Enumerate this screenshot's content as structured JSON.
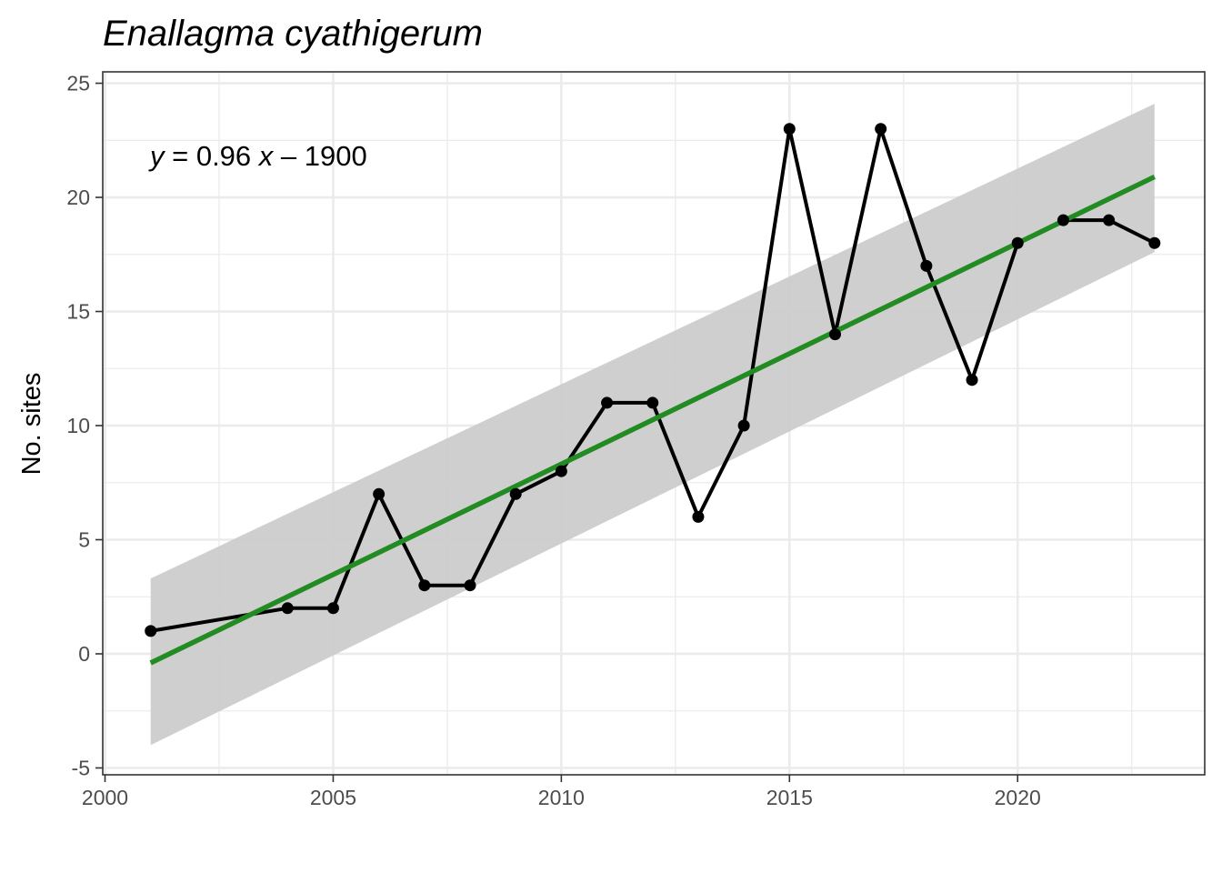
{
  "chart_data": {
    "type": "line",
    "title": "Enallagma cyathigerum",
    "xlabel": "",
    "ylabel": "No. sites",
    "xlim": [
      1999.95,
      2024.1
    ],
    "ylim": [
      -5.3,
      25.5
    ],
    "x_ticks": [
      2000,
      2005,
      2010,
      2015,
      2020
    ],
    "y_ticks": [
      -5,
      0,
      5,
      10,
      15,
      20,
      25
    ],
    "grid": true,
    "series": [
      {
        "color": "#000000",
        "x": [
          2001,
          2004,
          2005,
          2006,
          2007,
          2008,
          2009,
          2010,
          2011,
          2012,
          2013,
          2014,
          2015,
          2016,
          2017,
          2018,
          2019,
          2020,
          2021,
          2022,
          2023
        ],
        "values": [
          1,
          2,
          2,
          7,
          3,
          3,
          7,
          8,
          11,
          11,
          6,
          10,
          23,
          14,
          23,
          17,
          12,
          18,
          19,
          19,
          18
        ]
      }
    ],
    "trend": {
      "color": "#228B22",
      "slope": 0.96,
      "equation": {
        "y": "y",
        "op": " = 0.96 ",
        "x": "x",
        "rest": " – 1900"
      },
      "x": [
        2001,
        2023
      ],
      "fit": [
        -0.4,
        20.9
      ],
      "ci_lower": [
        -4.0,
        17.6
      ],
      "ci_upper": [
        3.3,
        24.1
      ],
      "ci_color": "#cccccc"
    }
  }
}
